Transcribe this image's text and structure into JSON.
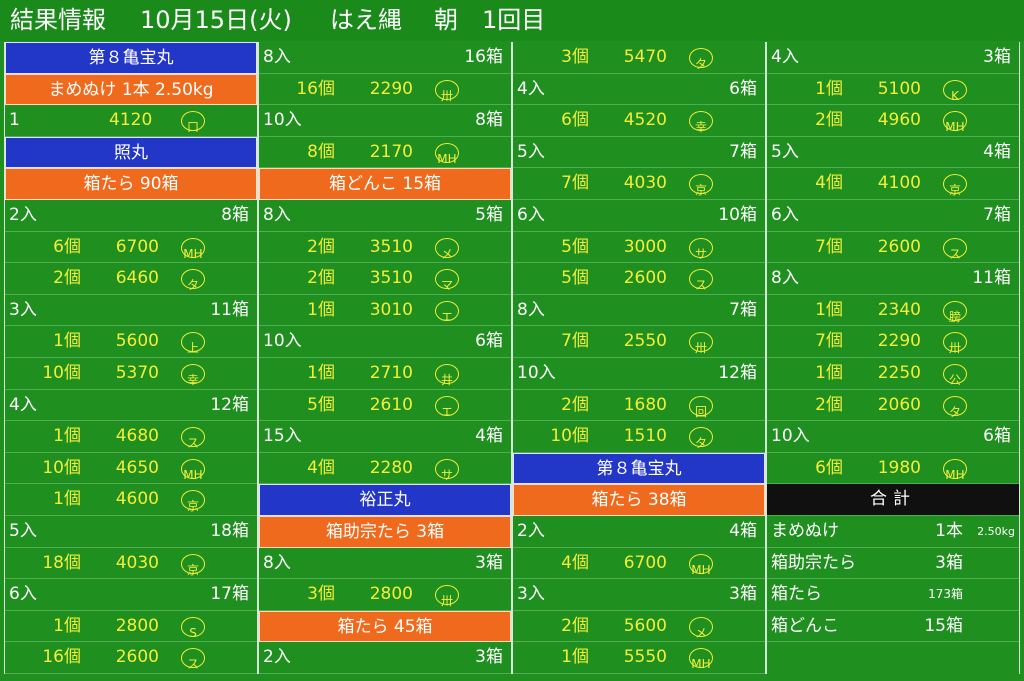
{
  "header": {
    "title": "結果情報",
    "date": "10月15日(火)",
    "fish": "はえ縄",
    "session": "朝",
    "round": "1回目"
  },
  "columns": [
    [
      {
        "t": "boat",
        "text": "第８亀宝丸"
      },
      {
        "t": "item",
        "text": "まめぬけ 1本 2.50kg"
      },
      {
        "t": "single",
        "lbl": "1",
        "prc": "4120",
        "buy": "口"
      },
      {
        "t": "boat",
        "text": "照丸"
      },
      {
        "t": "item",
        "text": "箱たら 90箱"
      },
      {
        "t": "head",
        "lbl": "2入",
        "boxes": "8箱"
      },
      {
        "t": "line",
        "cnt": "6個",
        "prc": "6700",
        "buy": "MH"
      },
      {
        "t": "line",
        "cnt": "2個",
        "prc": "6460",
        "buy": "タ"
      },
      {
        "t": "head",
        "lbl": "3入",
        "boxes": "11箱"
      },
      {
        "t": "line",
        "cnt": "1個",
        "prc": "5600",
        "buy": "上"
      },
      {
        "t": "line",
        "cnt": "10個",
        "prc": "5370",
        "buy": "幸"
      },
      {
        "t": "head",
        "lbl": "4入",
        "boxes": "12箱"
      },
      {
        "t": "line",
        "cnt": "1個",
        "prc": "4680",
        "buy": "ス"
      },
      {
        "t": "line",
        "cnt": "10個",
        "prc": "4650",
        "buy": "MH"
      },
      {
        "t": "line",
        "cnt": "1個",
        "prc": "4600",
        "buy": "京"
      },
      {
        "t": "head",
        "lbl": "5入",
        "boxes": "18箱"
      },
      {
        "t": "line",
        "cnt": "18個",
        "prc": "4030",
        "buy": "京"
      },
      {
        "t": "head",
        "lbl": "6入",
        "boxes": "17箱"
      },
      {
        "t": "line",
        "cnt": "1個",
        "prc": "2800",
        "buy": "S"
      },
      {
        "t": "line",
        "cnt": "16個",
        "prc": "2600",
        "buy": "ス"
      }
    ],
    [
      {
        "t": "head",
        "lbl": "8入",
        "boxes": "16箱"
      },
      {
        "t": "line",
        "cnt": "16個",
        "prc": "2290",
        "buy": "卅"
      },
      {
        "t": "head",
        "lbl": "10入",
        "boxes": "8箱"
      },
      {
        "t": "line",
        "cnt": "8個",
        "prc": "2170",
        "buy": "MH"
      },
      {
        "t": "item",
        "text": "箱どんこ 15箱"
      },
      {
        "t": "head",
        "lbl": "8入",
        "boxes": "5箱"
      },
      {
        "t": "line",
        "cnt": "2個",
        "prc": "3510",
        "buy": "メ"
      },
      {
        "t": "line",
        "cnt": "2個",
        "prc": "3510",
        "buy": "マ"
      },
      {
        "t": "line",
        "cnt": "1個",
        "prc": "3010",
        "buy": "エ"
      },
      {
        "t": "head",
        "lbl": "10入",
        "boxes": "6箱"
      },
      {
        "t": "line",
        "cnt": "1個",
        "prc": "2710",
        "buy": "井"
      },
      {
        "t": "line",
        "cnt": "5個",
        "prc": "2610",
        "buy": "エ"
      },
      {
        "t": "head",
        "lbl": "15入",
        "boxes": "4箱"
      },
      {
        "t": "line",
        "cnt": "4個",
        "prc": "2280",
        "buy": "サ"
      },
      {
        "t": "boat",
        "text": "裕正丸"
      },
      {
        "t": "item",
        "text": "箱助宗たら 3箱"
      },
      {
        "t": "head",
        "lbl": "8入",
        "boxes": "3箱"
      },
      {
        "t": "line",
        "cnt": "3個",
        "prc": "2800",
        "buy": "卅"
      },
      {
        "t": "item",
        "text": "箱たら 45箱"
      },
      {
        "t": "head",
        "lbl": "2入",
        "boxes": "3箱"
      }
    ],
    [
      {
        "t": "line",
        "cnt": "3個",
        "prc": "5470",
        "buy": "タ"
      },
      {
        "t": "head",
        "lbl": "4入",
        "boxes": "6箱"
      },
      {
        "t": "line",
        "cnt": "6個",
        "prc": "4520",
        "buy": "幸"
      },
      {
        "t": "head",
        "lbl": "5入",
        "boxes": "7箱"
      },
      {
        "t": "line",
        "cnt": "7個",
        "prc": "4030",
        "buy": "京"
      },
      {
        "t": "head",
        "lbl": "6入",
        "boxes": "10箱"
      },
      {
        "t": "line",
        "cnt": "5個",
        "prc": "3000",
        "buy": "サ"
      },
      {
        "t": "line",
        "cnt": "5個",
        "prc": "2600",
        "buy": "ス"
      },
      {
        "t": "head",
        "lbl": "8入",
        "boxes": "7箱"
      },
      {
        "t": "line",
        "cnt": "7個",
        "prc": "2550",
        "buy": "卅"
      },
      {
        "t": "head",
        "lbl": "10入",
        "boxes": "12箱"
      },
      {
        "t": "line",
        "cnt": "2個",
        "prc": "1680",
        "buy": "回"
      },
      {
        "t": "line",
        "cnt": "10個",
        "prc": "1510",
        "buy": "タ"
      },
      {
        "t": "boat",
        "text": "第８亀宝丸"
      },
      {
        "t": "item",
        "text": "箱たら 38箱"
      },
      {
        "t": "head",
        "lbl": "2入",
        "boxes": "4箱"
      },
      {
        "t": "line",
        "cnt": "4個",
        "prc": "6700",
        "buy": "MH"
      },
      {
        "t": "head",
        "lbl": "3入",
        "boxes": "3箱"
      },
      {
        "t": "line",
        "cnt": "2個",
        "prc": "5600",
        "buy": "メ"
      },
      {
        "t": "line",
        "cnt": "1個",
        "prc": "5550",
        "buy": "MH"
      }
    ],
    [
      {
        "t": "head",
        "lbl": "4入",
        "boxes": "3箱"
      },
      {
        "t": "line",
        "cnt": "1個",
        "prc": "5100",
        "buy": "K"
      },
      {
        "t": "line",
        "cnt": "2個",
        "prc": "4960",
        "buy": "MH"
      },
      {
        "t": "head",
        "lbl": "5入",
        "boxes": "4箱"
      },
      {
        "t": "line",
        "cnt": "4個",
        "prc": "4100",
        "buy": "京"
      },
      {
        "t": "head",
        "lbl": "6入",
        "boxes": "7箱"
      },
      {
        "t": "line",
        "cnt": "7個",
        "prc": "2600",
        "buy": "ス"
      },
      {
        "t": "head",
        "lbl": "8入",
        "boxes": "11箱"
      },
      {
        "t": "line",
        "cnt": "1個",
        "prc": "2340",
        "buy": "膀"
      },
      {
        "t": "line",
        "cnt": "7個",
        "prc": "2290",
        "buy": "卅"
      },
      {
        "t": "line",
        "cnt": "1個",
        "prc": "2250",
        "buy": "公"
      },
      {
        "t": "line",
        "cnt": "2個",
        "prc": "2060",
        "buy": "タ"
      },
      {
        "t": "head",
        "lbl": "10入",
        "boxes": "6箱"
      },
      {
        "t": "line",
        "cnt": "6個",
        "prc": "1980",
        "buy": "MH"
      },
      {
        "t": "total",
        "text": "合計"
      },
      {
        "t": "sum",
        "lbl": "まめぬけ",
        "val": "1本",
        "sub": "2.50kg"
      },
      {
        "t": "sum",
        "lbl": "箱助宗たら",
        "val": "3箱",
        "sub": ""
      },
      {
        "t": "sum",
        "lbl": "箱たら",
        "val": "173箱",
        "sub": "",
        "small": true
      },
      {
        "t": "sum",
        "lbl": "箱どんこ",
        "val": "15箱",
        "sub": ""
      }
    ]
  ]
}
